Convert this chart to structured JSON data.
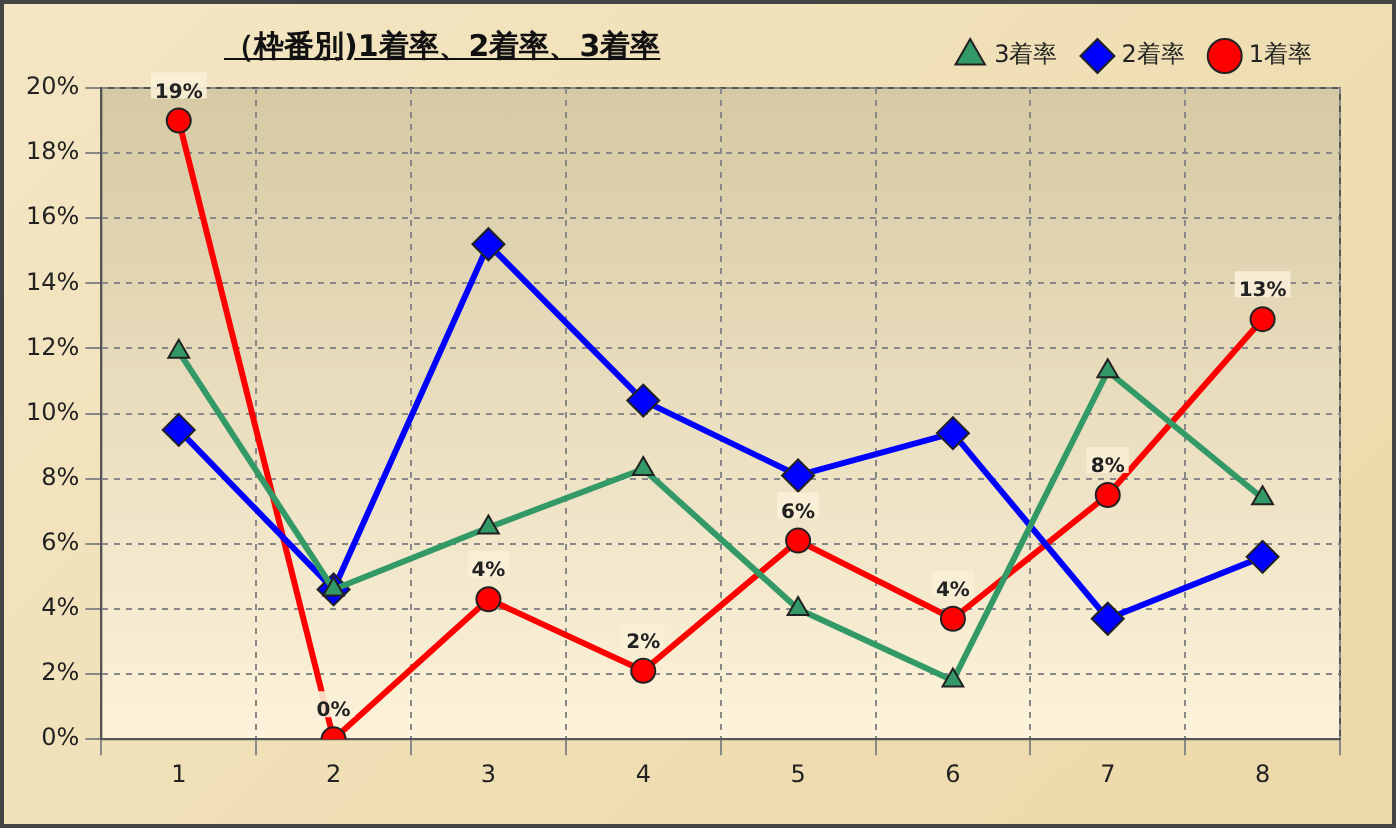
{
  "chart_data": {
    "type": "line",
    "title": "（枠番別)1着率、2着率、3着率",
    "categories": [
      "1",
      "2",
      "3",
      "4",
      "5",
      "6",
      "7",
      "8"
    ],
    "series": [
      {
        "name": "3着率",
        "color": "#339966",
        "marker": "triangle",
        "values": [
          11.9,
          4.6,
          6.5,
          8.3,
          4.0,
          1.8,
          11.3,
          7.4
        ]
      },
      {
        "name": "2着率",
        "color": "#0000ff",
        "marker": "diamond",
        "values": [
          9.5,
          4.6,
          15.2,
          10.4,
          8.1,
          9.4,
          3.7,
          5.6
        ]
      },
      {
        "name": "1着率",
        "color": "#ff0000",
        "marker": "circle",
        "values": [
          19,
          0,
          4.3,
          2.1,
          6.1,
          3.7,
          7.5,
          12.9
        ],
        "value_labels": [
          "19%",
          "0%",
          "4%",
          "2%",
          "6%",
          "4%",
          "8%",
          "13%"
        ]
      }
    ],
    "ylim": [
      0,
      20
    ],
    "yticks": [
      {
        "value": 0,
        "label": "0%"
      },
      {
        "value": 2,
        "label": "2%"
      },
      {
        "value": 4,
        "label": "4%"
      },
      {
        "value": 6,
        "label": "6%"
      },
      {
        "value": 8,
        "label": "8%"
      },
      {
        "value": 10,
        "label": "10%"
      },
      {
        "value": 12,
        "label": "12%"
      },
      {
        "value": 14,
        "label": "14%"
      },
      {
        "value": 16,
        "label": "16%"
      },
      {
        "value": 18,
        "label": "18%"
      },
      {
        "value": 20,
        "label": "20%"
      }
    ],
    "grid": true,
    "legend": "top right",
    "line_style": "solid"
  }
}
